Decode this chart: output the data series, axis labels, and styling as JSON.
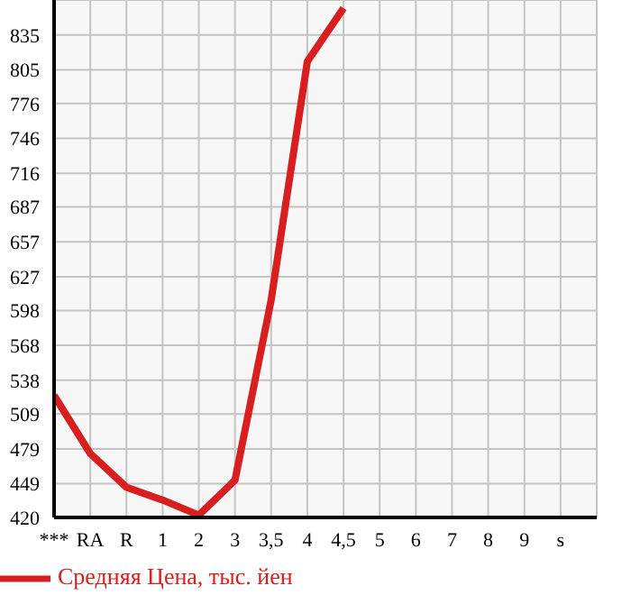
{
  "chart_data": {
    "type": "line",
    "categories": [
      "***",
      "RA",
      "R",
      "1",
      "2",
      "3",
      "3,5",
      "4",
      "4,5",
      "5",
      "6",
      "7",
      "8",
      "9",
      "s"
    ],
    "series": [
      {
        "name": "Средняя Цена, тыс. йен",
        "color": "#d81e1e",
        "values": [
          525,
          475,
          446,
          435,
          422,
          452,
          607,
          812,
          858,
          null,
          null,
          null,
          null,
          null,
          null
        ]
      }
    ],
    "ylim": [
      420,
      865
    ],
    "yticks": [
      420,
      449,
      479,
      509,
      538,
      568,
      598,
      627,
      657,
      687,
      716,
      746,
      776,
      805,
      835
    ],
    "grid": true,
    "legend": "bottom left",
    "marker": "none",
    "line_style": "solid"
  }
}
